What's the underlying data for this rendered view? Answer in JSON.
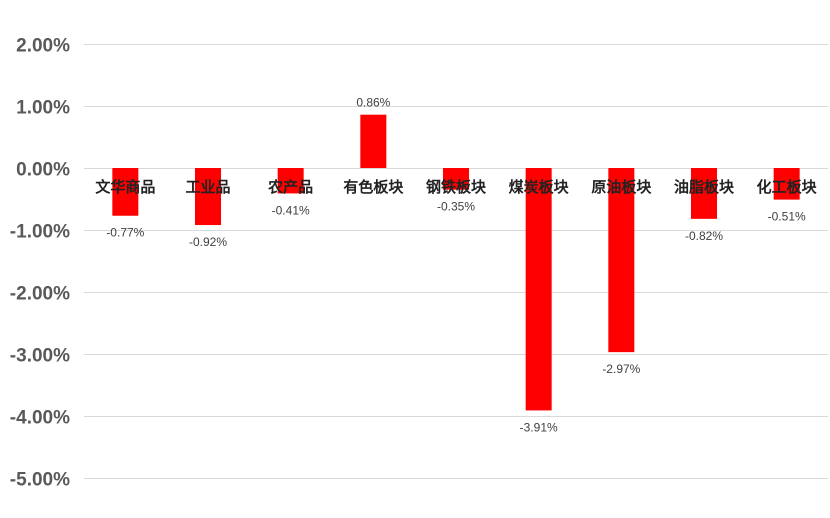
{
  "chart_data": {
    "type": "bar",
    "title": "",
    "xlabel": "",
    "ylabel": "",
    "ylim": [
      -5,
      2
    ],
    "yticks": [
      "2.00%",
      "1.00%",
      "0.00%",
      "-1.00%",
      "-2.00%",
      "-3.00%",
      "-4.00%",
      "-5.00%"
    ],
    "grid": true,
    "bar_color": "#ff0000",
    "categories": [
      "文华商品",
      "工业品",
      "农产品",
      "有色板块",
      "钢铁板块",
      "煤炭板块",
      "原油板块",
      "油脂板块",
      "化工板块"
    ],
    "values": [
      -0.77,
      -0.92,
      -0.41,
      0.86,
      -0.35,
      -3.91,
      -2.97,
      -0.82,
      -0.51
    ],
    "data_labels": [
      "-0.77%",
      "-0.92%",
      "-0.41%",
      "0.86%",
      "-0.35%",
      "-3.91%",
      "-2.97%",
      "-0.82%",
      "-0.51%"
    ]
  }
}
